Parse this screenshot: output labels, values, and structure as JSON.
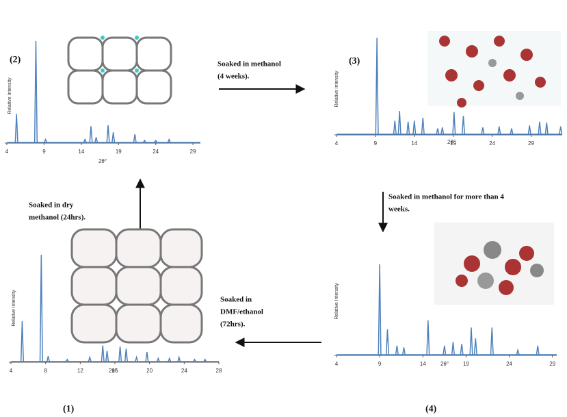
{
  "panels": [
    {
      "label": "(2)",
      "x_label": "2θ°",
      "y_label": "Relative Intensity",
      "xlim": [
        4,
        30
      ],
      "xticks": [
        4,
        9,
        14,
        19,
        24,
        29
      ],
      "peaks_x": [
        5.3,
        7.9,
        9.2,
        14.5,
        15.3,
        16,
        17.6,
        18.3,
        21.2,
        22.5,
        24,
        25.8
      ],
      "peaks_y": [
        28,
        100,
        3,
        3,
        16,
        5,
        17,
        10,
        8,
        2,
        2,
        3
      ]
    },
    {
      "label": "(3)",
      "x_label": "2θ°",
      "y_label": "Relative Intensity",
      "xlim": [
        4,
        33
      ],
      "xticks": [
        4,
        9,
        14,
        19,
        24,
        29
      ],
      "peaks_x": [
        9.2,
        11.5,
        12.1,
        13.2,
        14,
        15.1,
        17,
        17.6,
        19.1,
        20.3,
        22.8,
        24.9,
        26.5,
        28.8,
        30.1,
        31,
        32.8
      ],
      "peaks_y": [
        100,
        14,
        24,
        13,
        14,
        17,
        6,
        7,
        23,
        19,
        7,
        8,
        6,
        9,
        13,
        12,
        8
      ]
    },
    {
      "label": "(1)",
      "x_label": "2θ°",
      "y_label": "Relative Intensity",
      "xlim": [
        4,
        28
      ],
      "xticks": [
        4,
        8,
        12,
        16,
        20,
        24,
        28
      ],
      "peaks_x": [
        5.3,
        7.5,
        8.3,
        10.5,
        13.1,
        14.6,
        15.1,
        16.6,
        17.3,
        18.5,
        19.7,
        21,
        22.3,
        23.4,
        25.2,
        26.4
      ],
      "peaks_y": [
        38,
        100,
        5,
        2,
        4,
        15,
        10,
        14,
        12,
        4,
        9,
        3,
        3,
        4,
        2,
        2
      ]
    },
    {
      "label": "(4)",
      "x_label": "2θ°",
      "y_label": "Relative Intensity",
      "xlim": [
        4,
        29.5
      ],
      "xticks": [
        4,
        9,
        14,
        19,
        24,
        29
      ],
      "peaks_x": [
        9,
        9.9,
        11,
        11.8,
        14.6,
        16.5,
        17.5,
        18.5,
        19.6,
        20.1,
        22,
        25,
        27.3
      ],
      "peaks_y": [
        100,
        28,
        10,
        8,
        38,
        10,
        14,
        12,
        30,
        18,
        30,
        5,
        10
      ]
    }
  ],
  "steps": [
    {
      "lines": [
        "Soaked in methanol",
        "(4 weeks)."
      ]
    },
    {
      "lines": [
        "Soaked in methanol for more than 4",
        "weeks."
      ]
    },
    {
      "lines": [
        "Soaked in",
        "DMF/ethanol",
        "(72hrs)."
      ]
    },
    {
      "lines": [
        "Soaked in dry",
        "methanol (24hrs)."
      ]
    }
  ]
}
